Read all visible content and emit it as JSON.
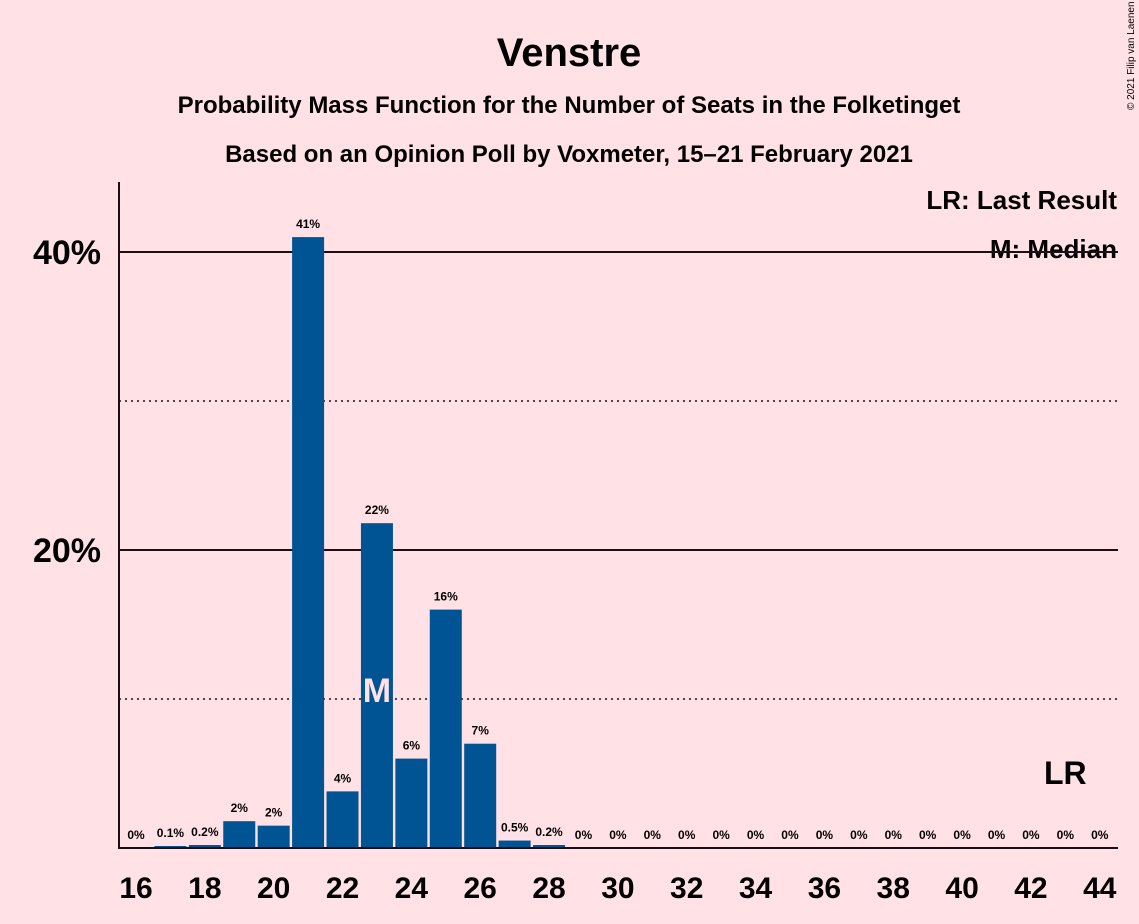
{
  "chart_data": {
    "type": "bar",
    "title": "Venstre",
    "subtitle": "Probability Mass Function for the Number of Seats in the Folketinget",
    "subtitle2": "Based on an Opinion Poll by Voxmeter, 15–21 February 2021",
    "copyright": "© 2021 Filip van Laenen",
    "x": [
      16,
      17,
      18,
      19,
      20,
      21,
      22,
      23,
      24,
      25,
      26,
      27,
      28,
      29,
      30,
      31,
      32,
      33,
      34,
      35,
      36,
      37,
      38,
      39,
      40,
      41,
      42,
      43,
      44
    ],
    "values": [
      0,
      0.1,
      0.2,
      1.8,
      1.5,
      41,
      3.8,
      21.8,
      6,
      16,
      7,
      0.5,
      0.2,
      0,
      0,
      0,
      0,
      0,
      0,
      0,
      0,
      0,
      0,
      0,
      0,
      0,
      0,
      0,
      0
    ],
    "data_labels": [
      "0%",
      "0.1%",
      "0.2%",
      "2%",
      "2%",
      "41%",
      "4%",
      "22%",
      "6%",
      "16%",
      "7%",
      "0.5%",
      "0.2%",
      "0%",
      "0%",
      "0%",
      "0%",
      "0%",
      "0%",
      "0%",
      "0%",
      "0%",
      "0%",
      "0%",
      "0%",
      "0%",
      "0%",
      "0%",
      "0%"
    ],
    "x_tick_labels": [
      "16",
      "18",
      "20",
      "22",
      "24",
      "26",
      "28",
      "30",
      "32",
      "34",
      "36",
      "38",
      "40",
      "42",
      "44"
    ],
    "y_tick_labels": [
      "20%",
      "40%"
    ],
    "ylim": [
      0,
      45
    ],
    "grid": {
      "solid": [
        20,
        40
      ],
      "dotted": [
        10,
        30
      ]
    },
    "median_seat": 23,
    "median_mark": "M",
    "last_result_seat": 43,
    "last_result_mark": "LR",
    "legend": [
      "LR: Last Result",
      "M: Median"
    ],
    "legend_position": "top-right",
    "bar_color": "#005494",
    "background_color": "#FFE1E6"
  }
}
